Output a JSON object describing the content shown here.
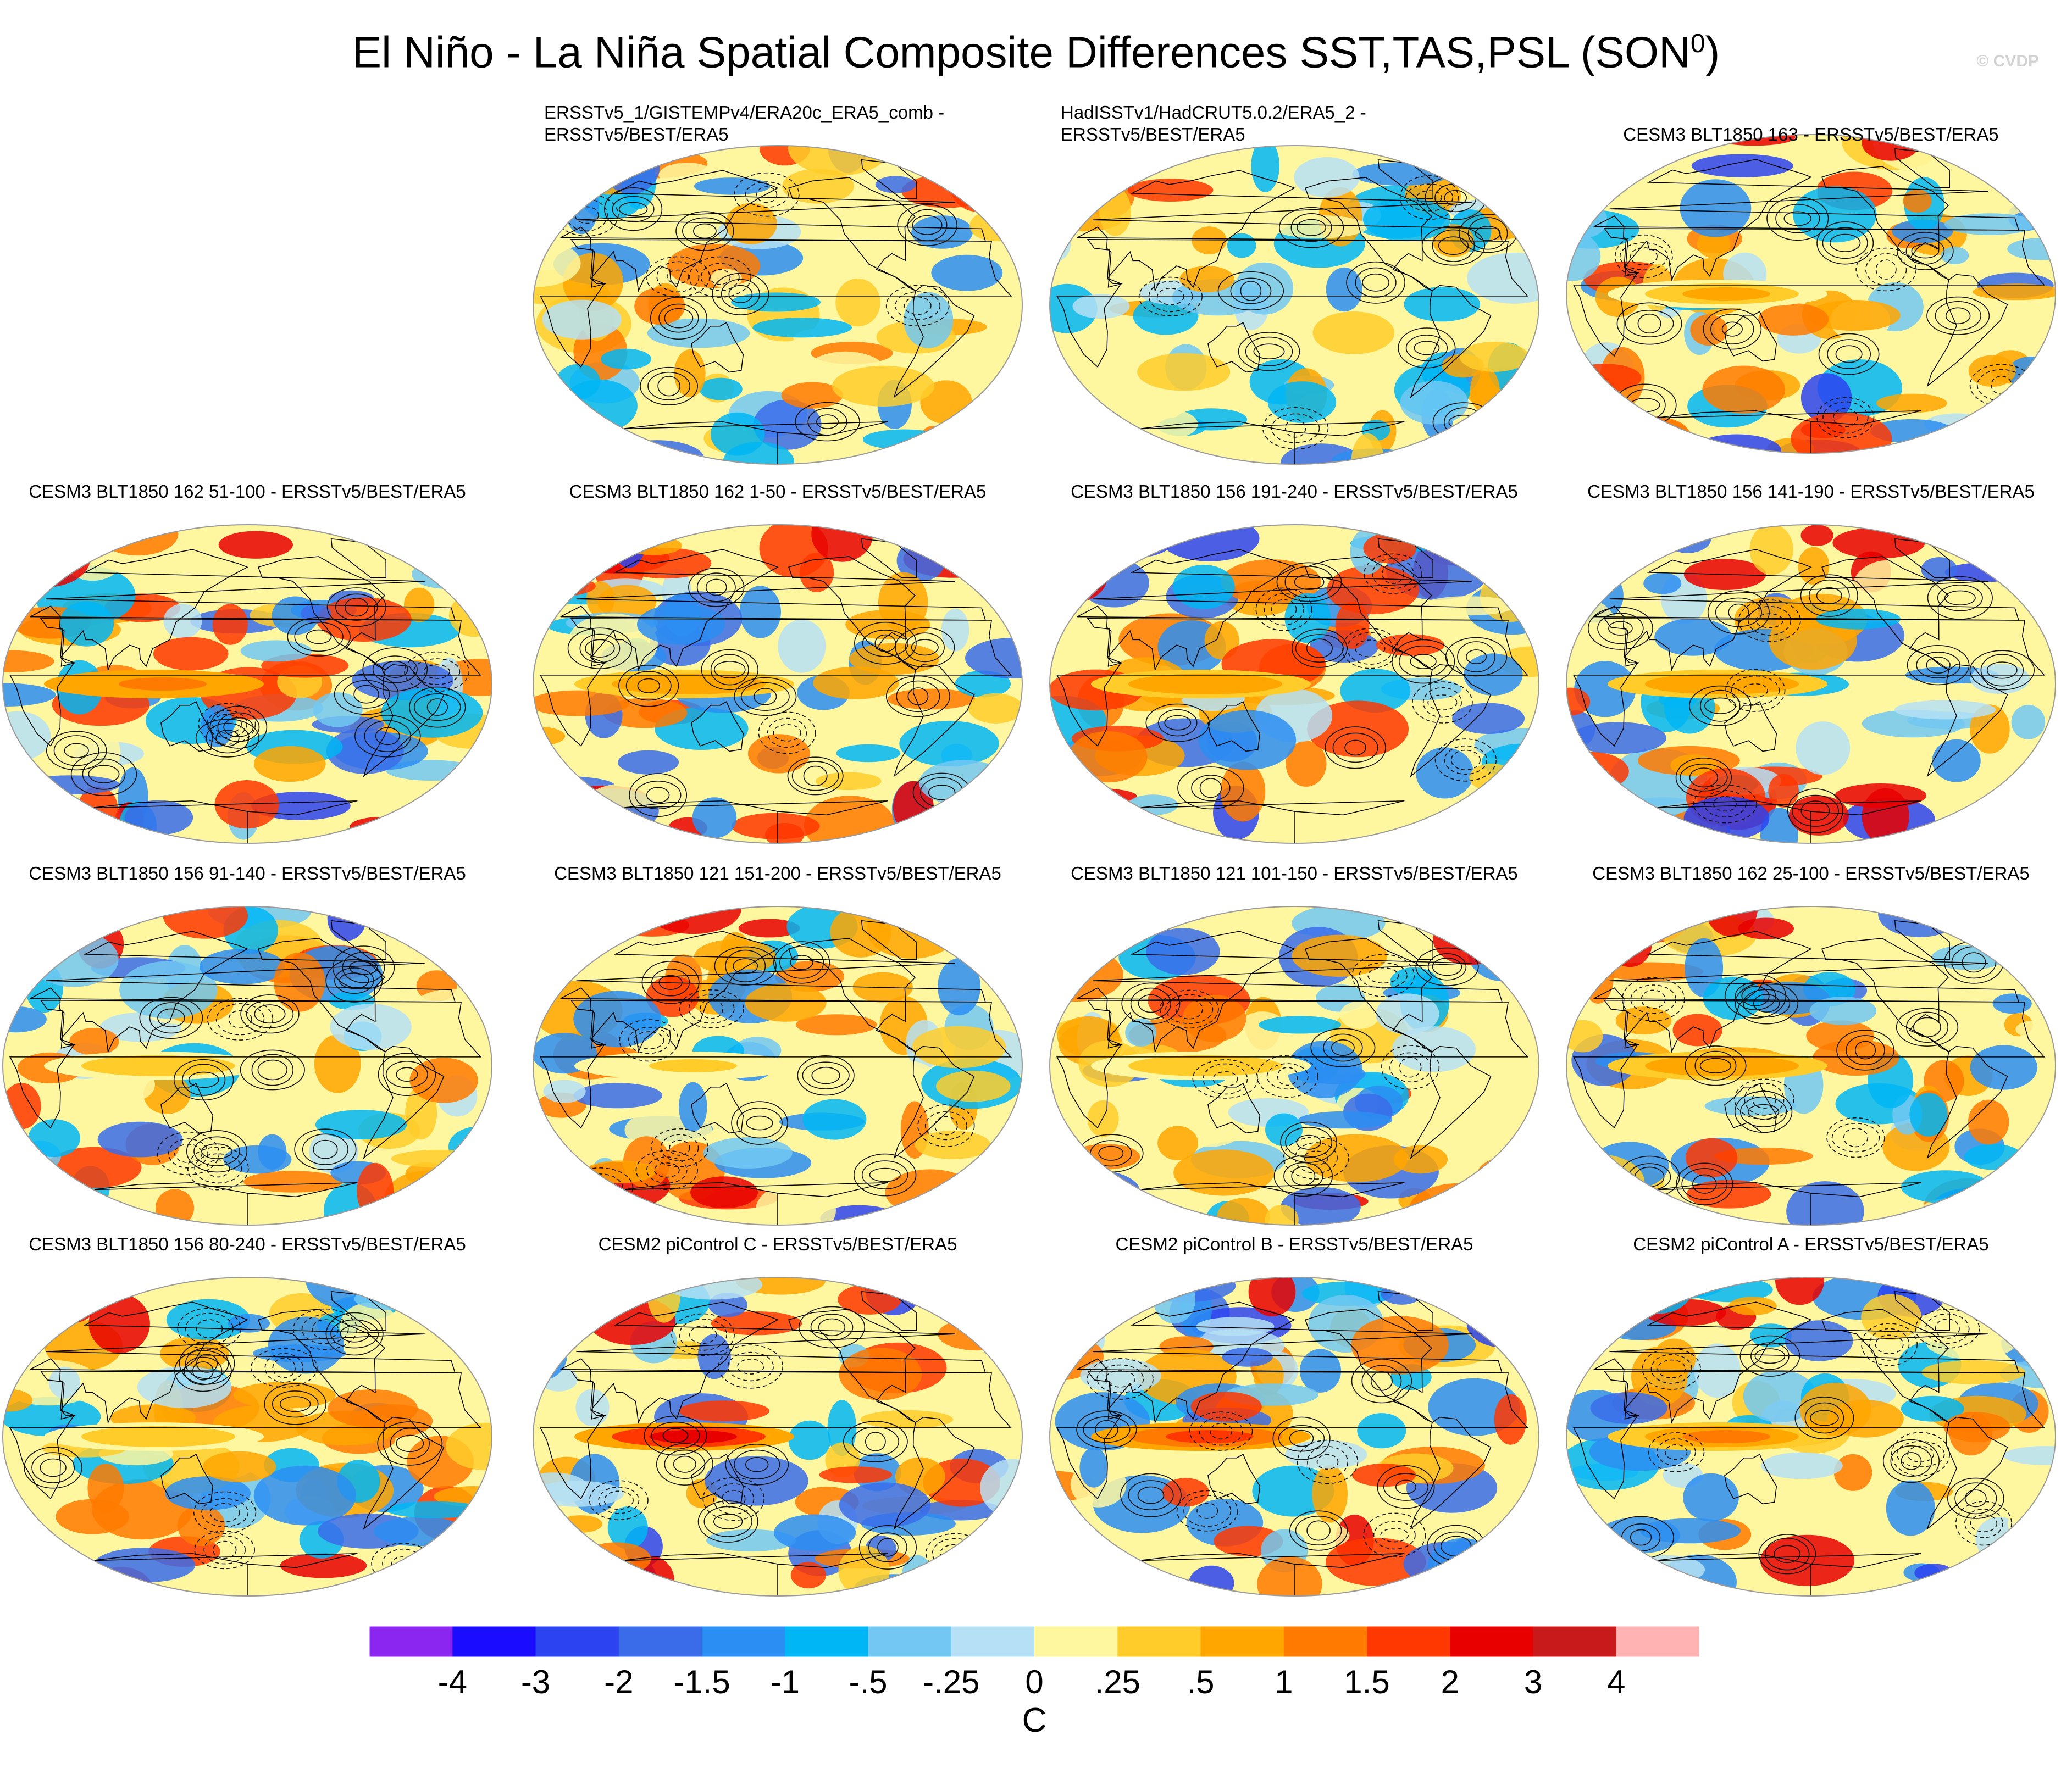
{
  "title_main": "El Niño - La Niña Spatial Composite Differences SST,TAS,PSL (SON",
  "title_sup": "0",
  "title_close": ")",
  "credit": "© CVDP",
  "chart_data": {
    "type": "map-panels",
    "projection": "Robinson (global)",
    "variables": [
      "SST",
      "TAS",
      "PSL"
    ],
    "season": "SON0",
    "panels": [
      {
        "id": "p1",
        "title": "ERSSTv5_1/GISTEMPv4/ERA20c_ERA5_comb - ERSSTv5/BEST/ERA5",
        "title_lines": [
          "ERSSTv5_1/GISTEMPv4/ERA20c_ERA5_comb -",
          "ERSSTv5/BEST/ERA5"
        ],
        "seed": 11,
        "enso": 0.0,
        "sat": 0.55
      },
      {
        "id": "p2",
        "title": "HadISSTv1/HadCRUT5.0.2/ERA5_2 - ERSSTv5/BEST/ERA5",
        "title_lines": [
          "HadISSTv1/HadCRUT5.0.2/ERA5_2 -",
          "ERSSTv5/BEST/ERA5"
        ],
        "seed": 23,
        "enso": 0.0,
        "sat": 0.35
      },
      {
        "id": "p3",
        "title": "CESM3 BLT1850 163 - ERSSTv5/BEST/ERA5",
        "title_lines": [
          "CESM3 BLT1850 163 - ERSSTv5/BEST/ERA5"
        ],
        "seed": 37,
        "enso": 0.4,
        "sat": 0.8
      },
      {
        "id": "p4",
        "title": "CESM3 BLT1850 162 51-100 - ERSSTv5/BEST/ERA5",
        "title_lines": [
          "CESM3 BLT1850 162 51-100 - ERSSTv5/BEST/ERA5"
        ],
        "seed": 41,
        "enso": 0.9,
        "sat": 0.9
      },
      {
        "id": "p5",
        "title": "CESM3 BLT1850 162 1-50 - ERSSTv5/BEST/ERA5",
        "title_lines": [
          "CESM3 BLT1850 162 1-50 - ERSSTv5/BEST/ERA5"
        ],
        "seed": 53,
        "enso": 0.6,
        "sat": 0.85
      },
      {
        "id": "p6",
        "title": "CESM3 BLT1850 156 191-240 - ERSSTv5/BEST/ERA5",
        "title_lines": [
          "CESM3 BLT1850 156 191-240 - ERSSTv5/BEST/ERA5"
        ],
        "seed": 67,
        "enso": 0.6,
        "sat": 0.9
      },
      {
        "id": "p7",
        "title": "CESM3 BLT1850 156 141-190 - ERSSTv5/BEST/ERA5",
        "title_lines": [
          "CESM3 BLT1850 156 141-190 - ERSSTv5/BEST/ERA5"
        ],
        "seed": 79,
        "enso": 0.5,
        "sat": 0.85
      },
      {
        "id": "p8",
        "title": "CESM3 BLT1850 156 91-140 - ERSSTv5/BEST/ERA5",
        "title_lines": [
          "CESM3 BLT1850 156 91-140 - ERSSTv5/BEST/ERA5"
        ],
        "seed": 83,
        "enso": 0.3,
        "sat": 0.75
      },
      {
        "id": "p9",
        "title": "CESM3 BLT1850 121 151-200 - ERSSTv5/BEST/ERA5",
        "title_lines": [
          "CESM3 BLT1850 121 151-200 - ERSSTv5/BEST/ERA5"
        ],
        "seed": 97,
        "enso": 0.2,
        "sat": 0.7
      },
      {
        "id": "p10",
        "title": "CESM3 BLT1850 121 101-150 - ERSSTv5/BEST/ERA5",
        "title_lines": [
          "CESM3 BLT1850 121 101-150 - ERSSTv5/BEST/ERA5"
        ],
        "seed": 101,
        "enso": 0.3,
        "sat": 0.75
      },
      {
        "id": "p11",
        "title": "CESM3 BLT1850 162 25-100 - ERSSTv5/BEST/ERA5",
        "title_lines": [
          "CESM3 BLT1850 162 25-100 - ERSSTv5/BEST/ERA5"
        ],
        "seed": 113,
        "enso": 0.6,
        "sat": 0.8
      },
      {
        "id": "p12",
        "title": "CESM3 BLT1850 156 80-240 - ERSSTv5/BEST/ERA5",
        "title_lines": [
          "CESM3 BLT1850 156 80-240 - ERSSTv5/BEST/ERA5"
        ],
        "seed": 127,
        "enso": 0.3,
        "sat": 0.7
      },
      {
        "id": "p13",
        "title": "CESM2 piControl C - ERSSTv5/BEST/ERA5",
        "title_lines": [
          "CESM2 piControl C - ERSSTv5/BEST/ERA5"
        ],
        "seed": 131,
        "enso": 1.4,
        "sat": 0.9
      },
      {
        "id": "p14",
        "title": "CESM2 piControl B - ERSSTv5/BEST/ERA5",
        "title_lines": [
          "CESM2 piControl B - ERSSTv5/BEST/ERA5"
        ],
        "seed": 139,
        "enso": 1.2,
        "sat": 0.85
      },
      {
        "id": "p15",
        "title": "CESM2 piControl A - ERSSTv5/BEST/ERA5",
        "title_lines": [
          "CESM2 piControl A - ERSSTv5/BEST/ERA5"
        ],
        "seed": 149,
        "enso": 0.7,
        "sat": 0.75
      }
    ],
    "colorbar": {
      "levels": [
        "-4",
        "-3",
        "-2",
        "-1.5",
        "-1",
        "-.5",
        "-.25",
        "0",
        ".25",
        ".5",
        "1",
        "1.5",
        "2",
        "3",
        "4"
      ],
      "level_values": [
        -4,
        -3,
        -2,
        -1.5,
        -1,
        -0.5,
        -0.25,
        0,
        0.25,
        0.5,
        1,
        1.5,
        2,
        3,
        4
      ],
      "colors": [
        "#8b26f0",
        "#1a0dff",
        "#2b43f0",
        "#3a6cea",
        "#2b8ef2",
        "#00b6f5",
        "#72c8f2",
        "#b5e0f5",
        "#fff7a0",
        "#ffcc2a",
        "#ffa600",
        "#ff7a00",
        "#ff3700",
        "#e80000",
        "#c81a1a",
        "#ffb3b3"
      ],
      "units": "C"
    }
  }
}
